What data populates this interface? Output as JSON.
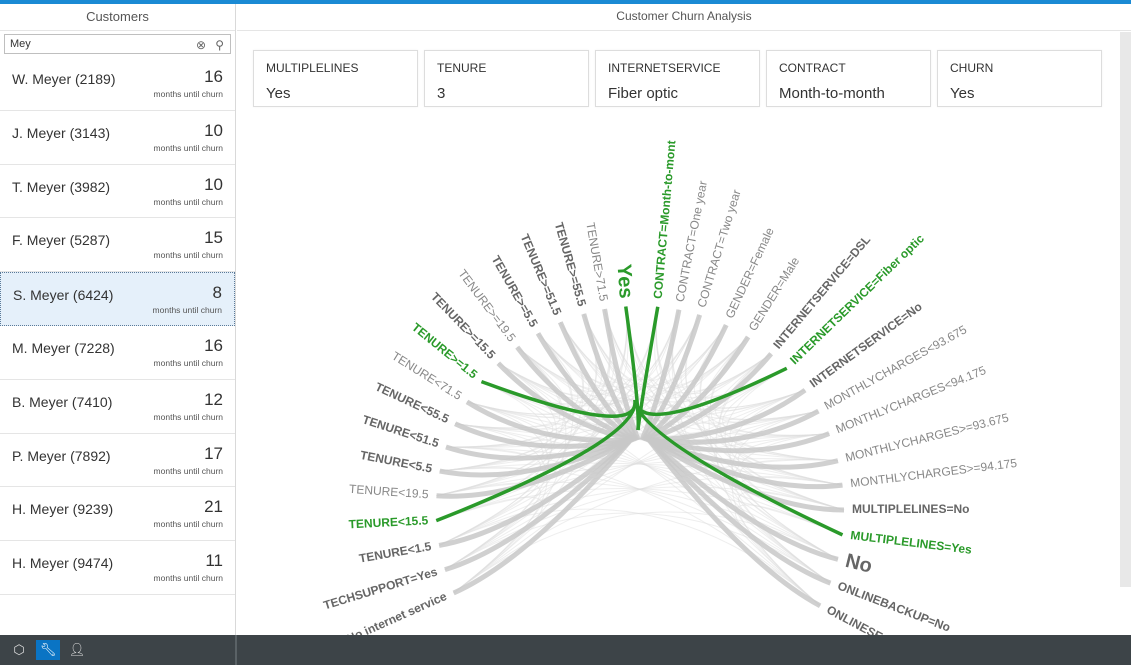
{
  "sidebar": {
    "title": "Customers",
    "search_value": "Mey",
    "customers": [
      {
        "name": "W. Meyer (2189)",
        "months": "16",
        "sub": "months until churn"
      },
      {
        "name": "J. Meyer (3143)",
        "months": "10",
        "sub": "months until churn"
      },
      {
        "name": "T. Meyer (3982)",
        "months": "10",
        "sub": "months until churn"
      },
      {
        "name": "F. Meyer (5287)",
        "months": "15",
        "sub": "months until churn"
      },
      {
        "name": "S. Meyer (6424)",
        "months": "8",
        "sub": "months until churn",
        "selected": true
      },
      {
        "name": "M. Meyer (7228)",
        "months": "16",
        "sub": "months until churn"
      },
      {
        "name": "B. Meyer (7410)",
        "months": "12",
        "sub": "months until churn"
      },
      {
        "name": "P. Meyer (7892)",
        "months": "17",
        "sub": "months until churn"
      },
      {
        "name": "H. Meyer (9239)",
        "months": "21",
        "sub": "months until churn"
      },
      {
        "name": "H. Meyer (9474)",
        "months": "11",
        "sub": "months until churn"
      }
    ]
  },
  "main": {
    "title": "Customer Churn Analysis",
    "cards": [
      {
        "label": "MULTIPLELINES",
        "value": "Yes"
      },
      {
        "label": "TENURE",
        "value": "3"
      },
      {
        "label": "INTERNETSERVICE",
        "value": "Fiber optic"
      },
      {
        "label": "CONTRACT",
        "value": "Month-to-month"
      },
      {
        "label": "CHURN",
        "value": "Yes"
      }
    ]
  },
  "chord": {
    "highlight_color": "#2a9a2a",
    "base_color": "#c8c8c8",
    "nodes": [
      {
        "label": "TECHSUPPORT=No internet service",
        "angle": -114,
        "bold": true
      },
      {
        "label": "TECHSUPPORT=Yes",
        "angle": -107,
        "bold": true
      },
      {
        "label": "TENURE<1.5",
        "angle": -100,
        "bold": true
      },
      {
        "label": "TENURE<15.5",
        "angle": -93,
        "bold": true,
        "hl": true
      },
      {
        "label": "TENURE<19.5",
        "angle": -86
      },
      {
        "label": "TENURE<5.5",
        "angle": -79,
        "bold": true
      },
      {
        "label": "TENURE<51.5",
        "angle": -72,
        "bold": true
      },
      {
        "label": "TENURE<55.5",
        "angle": -65,
        "bold": true
      },
      {
        "label": "TENURE<71.5",
        "angle": -58
      },
      {
        "label": "TENURE>=1.5",
        "angle": -51,
        "bold": true,
        "hl": true
      },
      {
        "label": "TENURE>=15.5",
        "angle": -44,
        "bold": true
      },
      {
        "label": "TENURE>=19.5",
        "angle": -37
      },
      {
        "label": "TENURE>=5.5",
        "angle": -30,
        "bold": true
      },
      {
        "label": "TENURE>=51.5",
        "angle": -23,
        "bold": true
      },
      {
        "label": "TENURE>=55.5",
        "angle": -16,
        "bold": true
      },
      {
        "label": "TENURE>71.5",
        "angle": -10
      },
      {
        "label": "Yes",
        "angle": -4,
        "bold": true,
        "hl": true,
        "big": true
      },
      {
        "label": "CONTRACT=Month-to-mont",
        "angle": 5,
        "bold": true,
        "hl": true
      },
      {
        "label": "CONTRACT=One year",
        "angle": 11
      },
      {
        "label": "CONTRACT=Two year",
        "angle": 17
      },
      {
        "label": "GENDER=Female",
        "angle": 25
      },
      {
        "label": "GENDER=Male",
        "angle": 32
      },
      {
        "label": "INTERNETSERVICE=DSL",
        "angle": 40,
        "bold": true
      },
      {
        "label": "INTERNETSERVICE=Fiber optic",
        "angle": 46,
        "bold": true,
        "hl": true
      },
      {
        "label": "INTERNETSERVICE=No",
        "angle": 54,
        "bold": true
      },
      {
        "label": "MONTHLYCHARGES<93.675",
        "angle": 61
      },
      {
        "label": "MONTHLYCHARGES<94.175",
        "angle": 68
      },
      {
        "label": "MONTHLYCHARGES>=93.675",
        "angle": 76
      },
      {
        "label": "MONTHLYCHARGES>=94.175",
        "angle": 83
      },
      {
        "label": "MULTIPLELINES=No",
        "angle": 90,
        "bold": true
      },
      {
        "label": "MULTIPLELINES=Yes",
        "angle": 97,
        "bold": true,
        "hl": true
      },
      {
        "label": "No",
        "angle": 104,
        "bold": true,
        "big": true
      },
      {
        "label": "ONLINEBACKUP=No",
        "angle": 111,
        "bold": true
      },
      {
        "label": "ONLINESECURITY=No",
        "angle": 118,
        "bold": true
      }
    ]
  },
  "footer": {
    "icons": [
      "package-icon",
      "wrench-icon",
      "user-icon"
    ],
    "active": "wrench-icon"
  }
}
